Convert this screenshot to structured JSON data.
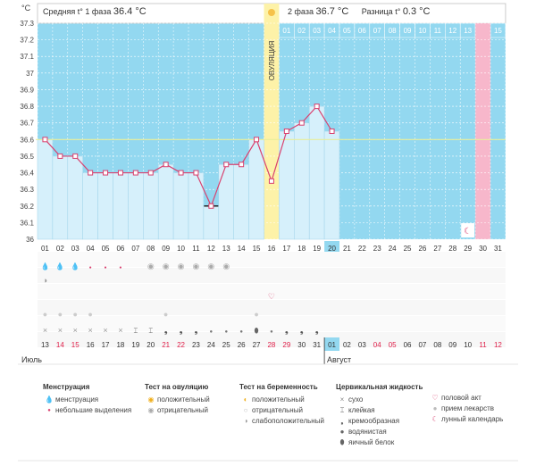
{
  "chart_data": {
    "type": "line",
    "y_unit": "°C",
    "ylim": [
      36.0,
      37.3
    ],
    "y_ticks": [
      "37.3",
      "37.2",
      "37.1",
      "37",
      "36.9",
      "36.8",
      "36.7",
      "36.6",
      "36.5",
      "36.4",
      "36.3",
      "36.2",
      "36.1",
      "36"
    ],
    "cycle_days": [
      "01",
      "02",
      "03",
      "04",
      "05",
      "06",
      "07",
      "08",
      "09",
      "10",
      "11",
      "12",
      "13",
      "14",
      "15",
      "16",
      "17",
      "18",
      "19",
      "20",
      "21",
      "22",
      "23",
      "24",
      "25",
      "26",
      "27",
      "28",
      "29",
      "30",
      "31"
    ],
    "temperatures": [
      36.6,
      36.5,
      36.5,
      36.4,
      36.4,
      36.4,
      36.4,
      36.4,
      36.45,
      36.4,
      36.4,
      36.2,
      36.45,
      36.45,
      36.6,
      36.35,
      36.65,
      36.7,
      36.8,
      36.65,
      null,
      null,
      null,
      null,
      null,
      null,
      null,
      null,
      null,
      null,
      null
    ],
    "coverline": 36.6,
    "ovulation_day": "16",
    "ovulation_label": "ОВУЛЯЦИЯ",
    "current_day": "20",
    "next_cycle_days": [
      "01",
      "02",
      "03",
      "04",
      "05",
      "06",
      "07",
      "08",
      "09",
      "10",
      "11",
      "12",
      "13",
      "14",
      "15"
    ],
    "next_highlight": "14",
    "phase1_label": "Средняя t° 1 фаза",
    "phase1_value": "36.4 °C",
    "phase2_label": "2 фаза",
    "phase2_value": "36.7 °C",
    "diff_label": "Разница t°",
    "diff_value": "0.3 °C",
    "dates": [
      {
        "t": "13",
        "red": false
      },
      {
        "t": "14",
        "red": true
      },
      {
        "t": "15",
        "red": true
      },
      {
        "t": "16",
        "red": false
      },
      {
        "t": "17",
        "red": false
      },
      {
        "t": "18",
        "red": false
      },
      {
        "t": "19",
        "red": false
      },
      {
        "t": "20",
        "red": false
      },
      {
        "t": "21",
        "red": true
      },
      {
        "t": "22",
        "red": true
      },
      {
        "t": "23",
        "red": false
      },
      {
        "t": "24",
        "red": false
      },
      {
        "t": "25",
        "red": false
      },
      {
        "t": "26",
        "red": false
      },
      {
        "t": "27",
        "red": false
      },
      {
        "t": "28",
        "red": true
      },
      {
        "t": "29",
        "red": true
      },
      {
        "t": "30",
        "red": false
      },
      {
        "t": "31",
        "red": false
      },
      {
        "t": "01",
        "red": false,
        "hl": true
      },
      {
        "t": "02",
        "red": false
      },
      {
        "t": "03",
        "red": false
      },
      {
        "t": "04",
        "red": true
      },
      {
        "t": "05",
        "red": true
      },
      {
        "t": "06",
        "red": false
      },
      {
        "t": "07",
        "red": false
      },
      {
        "t": "08",
        "red": false
      },
      {
        "t": "09",
        "red": false
      },
      {
        "t": "10",
        "red": false
      },
      {
        "t": "11",
        "red": true
      },
      {
        "t": "12",
        "red": true
      }
    ],
    "month1": "Июль",
    "month2": "Август",
    "colors": {
      "area": "#d6f0fb",
      "bg": "#93d8f0",
      "line": "#d9416f",
      "ovulation": "#fdf2a8",
      "pink": "#f7b7cb",
      "coverline": "#e8ee9a"
    },
    "symbols": {
      "menstruation": [
        "heavy",
        "heavy",
        "heavy",
        "light",
        "light",
        "light",
        null,
        null,
        null,
        null,
        null,
        null,
        null,
        null,
        null,
        null,
        null,
        null,
        null,
        null,
        null,
        null,
        null,
        null,
        null,
        null,
        null,
        null,
        null,
        null,
        null
      ],
      "ovulation_test": [
        null,
        null,
        null,
        null,
        null,
        null,
        null,
        "neg",
        "neg",
        "neg",
        "neg",
        "neg",
        "neg",
        null,
        null,
        null,
        null,
        null,
        null,
        null,
        null,
        null,
        null,
        null,
        null,
        null,
        null,
        null,
        null,
        null,
        null
      ],
      "pregnancy_test": [
        "weak",
        null,
        null,
        null,
        null,
        null,
        null,
        null,
        null,
        null,
        null,
        null,
        null,
        null,
        null,
        null,
        null,
        null,
        null,
        null,
        null,
        null,
        null,
        null,
        null,
        null,
        null,
        null,
        null,
        null,
        null
      ],
      "sex": [
        null,
        null,
        null,
        null,
        null,
        null,
        null,
        null,
        null,
        null,
        null,
        null,
        null,
        null,
        null,
        "sex",
        null,
        null,
        null,
        null,
        null,
        null,
        null,
        null,
        null,
        null,
        null,
        null,
        null,
        null,
        null
      ],
      "medication": [
        "pill",
        "pill",
        "pill",
        "pill",
        null,
        null,
        null,
        null,
        "pill",
        null,
        null,
        null,
        null,
        null,
        "pill",
        null,
        null,
        null,
        null,
        null,
        null,
        null,
        null,
        null,
        null,
        null,
        null,
        null,
        null,
        null,
        null
      ],
      "mucus": [
        "dry",
        "dry",
        "dry",
        "dry",
        "dry",
        "dry",
        "sticky",
        "sticky",
        "creamy",
        "creamy",
        "creamy",
        "watery",
        "watery",
        "watery",
        "eggwhite",
        "watery",
        "creamy",
        "creamy",
        "creamy",
        null,
        null,
        null,
        null,
        null,
        null,
        null,
        null,
        null,
        null,
        null,
        null
      ]
    },
    "moon_day": "29"
  },
  "legend": {
    "menstruation_title": "Менструация",
    "menstruation": "менструация",
    "spotting": "небольшие выделения",
    "ovu_title": "Тест на овуляцию",
    "ovu_pos": "положительный",
    "ovu_neg": "отрицательный",
    "preg_title": "Тест на беременность",
    "preg_pos": "положительный",
    "preg_neg": "отрицательный",
    "preg_weak": "слабоположительный",
    "mucus_title": "Цервикальная жидкость",
    "dry": "сухо",
    "sticky": "клейкая",
    "creamy": "кремообразная",
    "watery": "водянистая",
    "eggwhite": "яичный белок",
    "sex": "половой акт",
    "pill": "прием лекарств",
    "moon": "лунный календарь"
  }
}
